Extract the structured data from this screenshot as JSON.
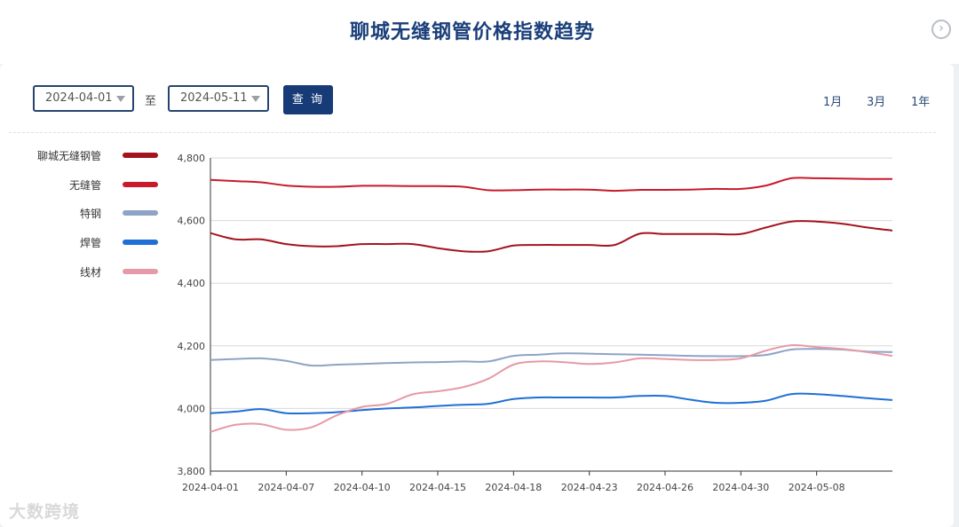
{
  "header": {
    "title": "聊城无缝钢管价格指数趋势",
    "next_icon": "chevron-right-circle-icon"
  },
  "filters": {
    "start_date": "2024-04-01",
    "to_label": "至",
    "end_date": "2024-05-11",
    "query_label": "查 询",
    "ranges": [
      "1月",
      "3月",
      "1年"
    ]
  },
  "watermark": "大数跨境",
  "colors": {
    "title": "#1b3f7a",
    "button": "#173b77"
  },
  "chart_data": {
    "type": "line",
    "x": [
      "2024-04-01",
      "2024-04-03",
      "2024-04-05",
      "2024-04-07",
      "2024-04-08",
      "2024-04-09",
      "2024-04-10",
      "2024-04-11",
      "2024-04-12",
      "2024-04-15",
      "2024-04-16",
      "2024-04-17",
      "2024-04-18",
      "2024-04-19",
      "2024-04-22",
      "2024-04-23",
      "2024-04-24",
      "2024-04-25",
      "2024-04-26",
      "2024-04-28",
      "2024-04-29",
      "2024-04-30",
      "2024-05-06",
      "2024-05-07",
      "2024-05-08",
      "2024-05-09",
      "2024-05-10",
      "2024-05-11"
    ],
    "x_ticks": [
      "2024-04-01",
      "2024-04-07",
      "2024-04-10",
      "2024-04-15",
      "2024-04-18",
      "2024-04-23",
      "2024-04-26",
      "2024-04-30",
      "2024-05-08"
    ],
    "x_tick_index": [
      0,
      3,
      6,
      9,
      12,
      15,
      18,
      21,
      24
    ],
    "y_ticks": [
      "3,800",
      "4,000",
      "4,200",
      "4,400",
      "4,600",
      "4,800"
    ],
    "ylim": [
      3800,
      4800
    ],
    "grid": true,
    "legend_position": "left",
    "series": [
      {
        "name": "聊城无缝钢管",
        "color": "#a3141f",
        "values": [
          4560,
          4540,
          4540,
          4525,
          4518,
          4518,
          4525,
          4525,
          4525,
          4512,
          4502,
          4502,
          4520,
          4522,
          4522,
          4522,
          4522,
          4558,
          4557,
          4557,
          4557,
          4557,
          4578,
          4597,
          4597,
          4590,
          4578,
          4568
        ]
      },
      {
        "name": "无缝管",
        "color": "#c81a2a",
        "values": [
          4730,
          4726,
          4722,
          4712,
          4708,
          4708,
          4711,
          4711,
          4710,
          4710,
          4708,
          4697,
          4697,
          4699,
          4699,
          4699,
          4695,
          4698,
          4698,
          4699,
          4701,
          4701,
          4712,
          4735,
          4735,
          4734,
          4733,
          4733
        ]
      },
      {
        "name": "特钢",
        "color": "#8ea3c6",
        "values": [
          4155,
          4158,
          4160,
          4152,
          4137,
          4140,
          4142,
          4145,
          4147,
          4148,
          4150,
          4150,
          4168,
          4172,
          4176,
          4175,
          4173,
          4172,
          4170,
          4168,
          4167,
          4167,
          4171,
          4188,
          4190,
          4188,
          4182,
          4180
        ]
      },
      {
        "name": "焊管",
        "color": "#1f6fd6",
        "values": [
          3985,
          3990,
          3998,
          3985,
          3985,
          3988,
          3995,
          4000,
          4003,
          4008,
          4012,
          4015,
          4030,
          4035,
          4035,
          4035,
          4035,
          4040,
          4040,
          4028,
          4018,
          4018,
          4025,
          4046,
          4046,
          4040,
          4033,
          4027
        ]
      },
      {
        "name": "线材",
        "color": "#e59aa6",
        "values": [
          3925,
          3948,
          3950,
          3932,
          3940,
          3978,
          4005,
          4015,
          4045,
          4055,
          4068,
          4095,
          4140,
          4150,
          4148,
          4142,
          4147,
          4160,
          4158,
          4155,
          4155,
          4160,
          4185,
          4202,
          4196,
          4190,
          4180,
          4168
        ]
      }
    ]
  }
}
